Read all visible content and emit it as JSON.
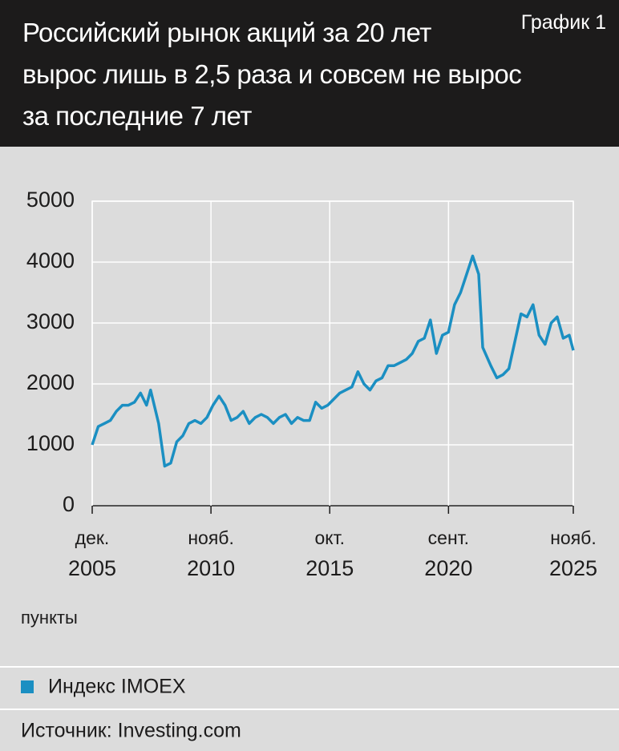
{
  "chart_data": {
    "type": "line",
    "label": "График 1",
    "title": [
      "Российский рынок акций за 20 лет",
      "вырос лишь в 2,5 раза и совсем не вырос",
      "за последние 7 лет"
    ],
    "y_label": "пункты",
    "source": "Источник: Investing.com",
    "x": [
      "2005-12",
      "2006-03",
      "2006-06",
      "2006-09",
      "2006-12",
      "2007-03",
      "2007-06",
      "2007-09",
      "2007-12",
      "2008-03",
      "2008-05",
      "2008-09",
      "2008-12",
      "2009-03",
      "2009-06",
      "2009-09",
      "2009-12",
      "2010-03",
      "2010-06",
      "2010-09",
      "2010-12",
      "2011-03",
      "2011-06",
      "2011-09",
      "2011-12",
      "2012-03",
      "2012-06",
      "2012-09",
      "2012-12",
      "2013-03",
      "2013-06",
      "2013-09",
      "2013-12",
      "2014-03",
      "2014-06",
      "2014-09",
      "2014-12",
      "2015-03",
      "2015-06",
      "2015-09",
      "2015-12",
      "2016-03",
      "2016-06",
      "2016-09",
      "2016-12",
      "2017-03",
      "2017-06",
      "2017-09",
      "2017-12",
      "2018-03",
      "2018-06",
      "2018-09",
      "2018-12",
      "2019-03",
      "2019-06",
      "2019-09",
      "2019-12",
      "2020-03",
      "2020-06",
      "2020-09",
      "2020-12",
      "2021-03",
      "2021-06",
      "2021-09",
      "2021-12",
      "2022-02",
      "2022-06",
      "2022-09",
      "2022-12",
      "2023-03",
      "2023-06",
      "2023-09",
      "2023-12",
      "2024-03",
      "2024-06",
      "2024-09",
      "2024-12",
      "2025-03",
      "2025-06",
      "2025-09",
      "2025-11"
    ],
    "series": [
      {
        "name": "Индекс IMOEX",
        "color": "#1b8fc2",
        "values": [
          1000,
          1300,
          1350,
          1400,
          1550,
          1650,
          1650,
          1700,
          1850,
          1650,
          1900,
          1350,
          650,
          700,
          1050,
          1150,
          1350,
          1400,
          1350,
          1450,
          1650,
          1800,
          1650,
          1400,
          1450,
          1550,
          1350,
          1450,
          1500,
          1450,
          1350,
          1450,
          1500,
          1350,
          1450,
          1400,
          1400,
          1700,
          1600,
          1650,
          1750,
          1850,
          1900,
          1950,
          2200,
          2000,
          1900,
          2050,
          2100,
          2300,
          2300,
          2350,
          2400,
          2500,
          2700,
          2750,
          3050,
          2500,
          2800,
          2850,
          3300,
          3500,
          3800,
          4100,
          3800,
          2600,
          2300,
          2100,
          2150,
          2250,
          2700,
          3150,
          3100,
          3300,
          2800,
          2650,
          3000,
          3100,
          2750,
          2800,
          2550
        ]
      }
    ],
    "xlim": [
      "2005-12",
      "2025-11"
    ],
    "xticks": [
      {
        "value": "2005-12",
        "label": [
          "дек.",
          "2005"
        ]
      },
      {
        "value": "2010-11",
        "label": [
          "нояб.",
          "2010"
        ]
      },
      {
        "value": "2015-10",
        "label": [
          "окт.",
          "2015"
        ]
      },
      {
        "value": "2020-09",
        "label": [
          "сент.",
          "2020"
        ]
      },
      {
        "value": "2025-11",
        "label": [
          "нояб.",
          "2025"
        ]
      }
    ],
    "ylim": [
      0,
      5000
    ],
    "yticks": [
      0,
      1000,
      2000,
      3000,
      4000,
      5000
    ],
    "grid": true
  }
}
